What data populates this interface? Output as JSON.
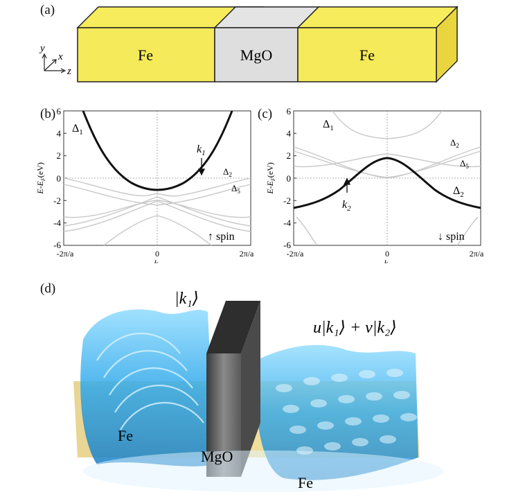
{
  "panel_a": {
    "label": "(a)",
    "blocks": [
      "Fe",
      "MgO",
      "Fe"
    ],
    "axes": {
      "y": "y",
      "x": "x",
      "z": "z"
    }
  },
  "panel_b": {
    "label": "(b)",
    "ylabel_main": "E-E",
    "ylabel_sub": "F",
    "ylabel_unit": "(eV)",
    "xlabel_main": "k",
    "xlabel_sub": "z",
    "ytick_labels": [
      "6",
      "4",
      "2",
      "0",
      "-2",
      "-4",
      "-6"
    ],
    "xtick_labels": [
      "-2π/a",
      "0",
      "2π/a"
    ],
    "band_labels": {
      "d1": "Δ",
      "d1_sub": "1",
      "d2": "Δ",
      "d2_sub": "2",
      "d5": "Δ",
      "d5_sub": "5"
    },
    "k_label": "k",
    "k_sub": "1",
    "spin_arrow": "↑",
    "spin_text": "spin"
  },
  "panel_c": {
    "label": "(c)",
    "ylabel_main": "E-E",
    "ylabel_sub": "F",
    "ylabel_unit": "(eV)",
    "xlabel_main": "k",
    "xlabel_sub": "z",
    "ytick_labels": [
      "6",
      "4",
      "2",
      "0",
      "-2",
      "-4",
      "-6"
    ],
    "xtick_labels": [
      "-2π/a",
      "0",
      "2π/a"
    ],
    "band_labels": {
      "d1": "Δ",
      "d1_sub": "1",
      "d2a": "Δ",
      "d2a_sub": "2",
      "d5": "Δ",
      "d5_sub": "5",
      "d2b": "Δ",
      "d2b_sub": "2"
    },
    "k_label": "k",
    "k_sub": "2",
    "spin_arrow": "↓",
    "spin_text": "spin"
  },
  "panel_d": {
    "label": "(d)",
    "ket_left": "|k₁⟩",
    "ket_right": "u|k₁⟩ + v|k₂⟩",
    "labels": [
      "Fe",
      "MgO",
      "Fe"
    ]
  },
  "chart_data": [
    {
      "type": "line",
      "title": "",
      "xlabel": "k_z",
      "ylabel": "E-E_F (eV)",
      "xlim": [
        -1,
        1
      ],
      "ylim": [
        -6,
        6
      ],
      "x_unit": "2π/a",
      "grid": false,
      "series": [
        {
          "name": "Δ1",
          "emphasis": "bold",
          "x": [
            -0.6,
            -0.5,
            -0.4,
            -0.3,
            -0.2,
            0,
            0.2,
            0.3,
            0.4,
            0.5,
            0.6,
            0.7,
            0.8
          ],
          "y": [
            6,
            3.2,
            1.0,
            -0.2,
            -0.8,
            -1.1,
            -0.8,
            -0.2,
            1.0,
            3.2,
            6,
            6,
            6
          ]
        },
        {
          "name": "Δ2",
          "emphasis": "light",
          "x": [
            -1,
            -0.5,
            0,
            0.5,
            1
          ],
          "y": [
            0,
            -1.0,
            -2.3,
            -1.0,
            0
          ]
        },
        {
          "name": "Δ5",
          "emphasis": "light",
          "x": [
            -1,
            -0.5,
            0,
            0.5,
            1
          ],
          "y": [
            -4.7,
            -3.2,
            -1.3,
            -3.2,
            -4.7
          ]
        }
      ]
    },
    {
      "type": "line",
      "title": "",
      "xlabel": "k_z",
      "ylabel": "E-E_F (eV)",
      "xlim": [
        -1,
        1
      ],
      "ylim": [
        -6,
        6
      ],
      "x_unit": "2π/a",
      "grid": false,
      "series": [
        {
          "name": "Δ2",
          "emphasis": "bold",
          "x": [
            -1,
            -0.75,
            -0.5,
            -0.25,
            0,
            0.25,
            0.5,
            0.75,
            1
          ],
          "y": [
            -2.7,
            -2.0,
            -0.3,
            1.3,
            2.0,
            1.3,
            -0.3,
            -2.0,
            -2.7
          ]
        },
        {
          "name": "Δ1",
          "emphasis": "light",
          "x": [
            -1,
            -0.5,
            0,
            0.5,
            1
          ],
          "y": [
            6,
            3.5,
            2.8,
            3.5,
            6
          ]
        },
        {
          "name": "Δ5",
          "emphasis": "light",
          "x": [
            -1,
            -0.5,
            0,
            0.5,
            1
          ],
          "y": [
            2.8,
            1.0,
            0,
            1.0,
            2.8
          ]
        }
      ]
    }
  ]
}
